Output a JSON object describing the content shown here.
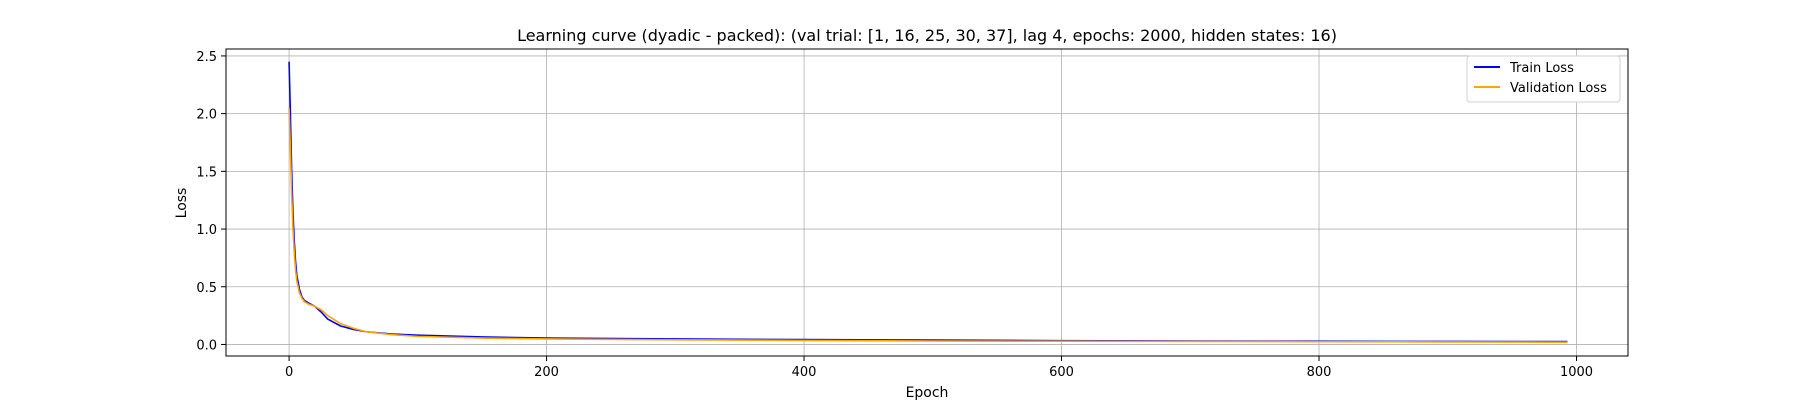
{
  "chart_data": {
    "type": "line",
    "title": "Learning curve (dyadic - packed): (val trial: [1, 16, 25, 30, 37], lag 4, epochs: 2000, hidden states: 16)",
    "xlabel": "Epoch",
    "ylabel": "Loss",
    "xlim": [
      -49,
      1040
    ],
    "ylim": [
      -0.1,
      2.56
    ],
    "xticks": [
      0,
      200,
      400,
      600,
      800,
      1000
    ],
    "yticks": [
      0.0,
      0.5,
      1.0,
      1.5,
      2.0,
      2.5
    ],
    "xtick_labels": [
      "0",
      "200",
      "400",
      "600",
      "800",
      "1000"
    ],
    "ytick_labels": [
      "0.0",
      "0.5",
      "1.0",
      "1.5",
      "2.0",
      "2.5"
    ],
    "grid": true,
    "legend_position": "top-right",
    "series": [
      {
        "name": "Train Loss",
        "color": "#0000ff",
        "x": [
          0,
          1,
          2,
          3,
          4,
          5,
          6,
          8,
          10,
          12,
          15,
          20,
          25,
          30,
          40,
          50,
          60,
          80,
          100,
          150,
          200,
          300,
          400,
          500,
          600,
          700,
          800,
          900,
          993
        ],
        "y": [
          2.45,
          2.0,
          1.5,
          1.15,
          0.9,
          0.72,
          0.6,
          0.48,
          0.41,
          0.38,
          0.36,
          0.33,
          0.28,
          0.22,
          0.16,
          0.13,
          0.11,
          0.09,
          0.08,
          0.065,
          0.055,
          0.048,
          0.042,
          0.038,
          0.033,
          0.03,
          0.028,
          0.026,
          0.025
        ]
      },
      {
        "name": "Validation Loss",
        "color": "#ffa500",
        "x": [
          0,
          1,
          2,
          3,
          4,
          5,
          6,
          8,
          10,
          12,
          15,
          20,
          25,
          30,
          40,
          50,
          60,
          80,
          100,
          150,
          200,
          300,
          400,
          500,
          600,
          700,
          800,
          900,
          993
        ],
        "y": [
          2.05,
          1.7,
          1.3,
          1.0,
          0.8,
          0.65,
          0.55,
          0.45,
          0.4,
          0.37,
          0.35,
          0.33,
          0.3,
          0.25,
          0.18,
          0.14,
          0.11,
          0.085,
          0.07,
          0.055,
          0.048,
          0.04,
          0.035,
          0.03,
          0.028,
          0.026,
          0.024,
          0.022,
          0.02
        ]
      }
    ]
  }
}
